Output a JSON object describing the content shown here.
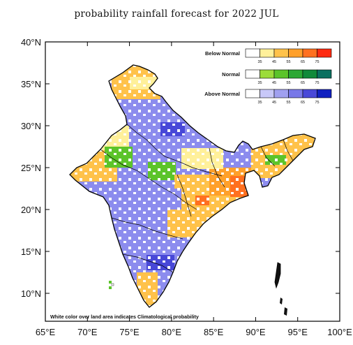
{
  "title": "probability rainfall forecast for 2022 JUL",
  "axes": {
    "lon_ticks": [
      "65°E",
      "70°E",
      "75°E",
      "80°E",
      "85°E",
      "90°E",
      "95°E",
      "100°E"
    ],
    "lat_ticks": [
      "40°N",
      "35°N",
      "30°N",
      "25°N",
      "20°N",
      "15°N",
      "10°N"
    ]
  },
  "legend": [
    {
      "label": "Below Normal",
      "ticks": [
        "35",
        "45",
        "55",
        "65",
        "75"
      ],
      "colors": [
        "#ffffff",
        "#fff09a",
        "#ffc24a",
        "#ffa02a",
        "#ff7020",
        "#ff2a10"
      ]
    },
    {
      "label": "Normal",
      "ticks": [
        "35",
        "45",
        "55",
        "65",
        "75"
      ],
      "colors": [
        "#ffffff",
        "#9cdc3a",
        "#5cc42a",
        "#2ca834",
        "#108a3a",
        "#0a7060"
      ]
    },
    {
      "label": "Above Normal",
      "ticks": [
        "35",
        "45",
        "55",
        "65",
        "75"
      ],
      "colors": [
        "#ffffff",
        "#c8c8f8",
        "#a0a0f0",
        "#7878e8",
        "#4848d8",
        "#1020c0"
      ]
    }
  ],
  "note": "White color over land area indicates Climatological probability",
  "colors": {
    "frame": "#000000",
    "land_blue": "#8c8cee",
    "land_yellow": "#ffc24a",
    "land_green": "#5cc42a",
    "land_orange": "#ff7020"
  }
}
